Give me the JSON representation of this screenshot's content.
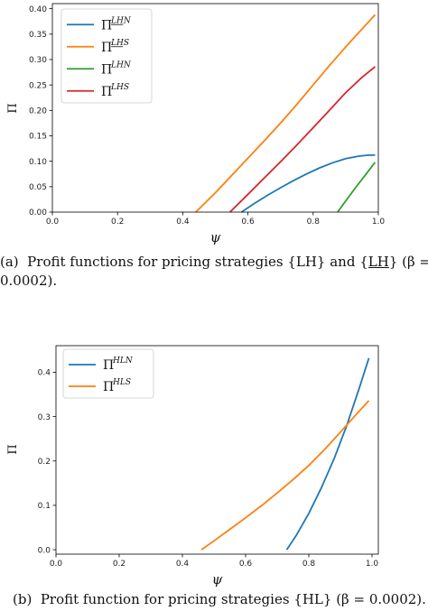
{
  "chart_data": [
    {
      "type": "line",
      "xlabel": "ψ",
      "ylabel": "Π",
      "xlim": [
        0.0,
        1.0
      ],
      "ylim": [
        0.0,
        0.41
      ],
      "xticks": [
        "0.0",
        "0.2",
        "0.4",
        "0.6",
        "0.8",
        "1.0"
      ],
      "yticks": [
        "0.00",
        "0.05",
        "0.10",
        "0.15",
        "0.20",
        "0.25",
        "0.30",
        "0.35",
        "0.40"
      ],
      "grid": false,
      "legend_position": "top-left",
      "series": [
        {
          "name": "Π^{\\underline{LH}N}",
          "base": "Π",
          "sup": "LHN",
          "underline_chars": 2,
          "color": "#1f77b4",
          "x": [
            0.58,
            0.62,
            0.66,
            0.7,
            0.74,
            0.78,
            0.82,
            0.86,
            0.9,
            0.94,
            0.97,
            0.99
          ],
          "y": [
            0.0,
            0.017,
            0.033,
            0.048,
            0.062,
            0.075,
            0.087,
            0.097,
            0.105,
            0.11,
            0.112,
            0.112
          ]
        },
        {
          "name": "Π^{\\underline{LH}S}",
          "base": "Π",
          "sup": "LHS",
          "underline_chars": 2,
          "color": "#ff7f0e",
          "x": [
            0.44,
            0.5,
            0.55,
            0.6,
            0.65,
            0.7,
            0.75,
            0.8,
            0.85,
            0.9,
            0.95,
            0.99
          ],
          "y": [
            0.0,
            0.038,
            0.072,
            0.106,
            0.14,
            0.175,
            0.212,
            0.25,
            0.288,
            0.325,
            0.36,
            0.388
          ]
        },
        {
          "name": "Π^{LHN}",
          "base": "Π",
          "sup": "LHN",
          "underline_chars": 0,
          "color": "#2ca02c",
          "x": [
            0.875,
            0.9,
            0.93,
            0.96,
            0.99
          ],
          "y": [
            0.0,
            0.022,
            0.048,
            0.073,
            0.098
          ]
        },
        {
          "name": "Π^{LHS}",
          "base": "Π",
          "sup": "LHS",
          "underline_chars": 0,
          "color": "#d62728",
          "x": [
            0.545,
            0.6,
            0.65,
            0.7,
            0.75,
            0.8,
            0.85,
            0.9,
            0.95,
            0.99
          ],
          "y": [
            0.0,
            0.035,
            0.067,
            0.099,
            0.132,
            0.166,
            0.2,
            0.235,
            0.265,
            0.286
          ]
        }
      ]
    },
    {
      "type": "line",
      "xlabel": "ψ",
      "ylabel": "Π",
      "xlim": [
        0.0,
        1.02
      ],
      "ylim": [
        -0.01,
        0.46
      ],
      "xticks": [
        "0.0",
        "0.2",
        "0.4",
        "0.6",
        "0.8",
        "1.0"
      ],
      "yticks": [
        "0.0",
        "0.1",
        "0.2",
        "0.3",
        "0.4"
      ],
      "grid": false,
      "legend_position": "top-left",
      "series": [
        {
          "name": "Π^{HLN}",
          "base": "Π",
          "sup": "HLN",
          "underline_chars": 0,
          "color": "#1f77b4",
          "x": [
            0.73,
            0.76,
            0.8,
            0.84,
            0.88,
            0.92,
            0.96,
            0.99
          ],
          "y": [
            0.0,
            0.032,
            0.082,
            0.14,
            0.205,
            0.28,
            0.365,
            0.432
          ]
        },
        {
          "name": "Π^{HLS}",
          "base": "Π",
          "sup": "HLS",
          "underline_chars": 0,
          "color": "#ff7f0e",
          "x": [
            0.46,
            0.5,
            0.55,
            0.6,
            0.65,
            0.7,
            0.75,
            0.8,
            0.85,
            0.9,
            0.95,
            0.99
          ],
          "y": [
            0.0,
            0.02,
            0.046,
            0.072,
            0.099,
            0.128,
            0.158,
            0.19,
            0.226,
            0.265,
            0.305,
            0.336
          ]
        }
      ]
    }
  ],
  "captions": {
    "a_line1": "(a)  Profit functions for pricing strategies {LH} and {LH} (β =",
    "a_line2": "0.0002).",
    "b_line1": "(b)  Profit function for pricing strategies {HL} (β = 0.0002)."
  }
}
